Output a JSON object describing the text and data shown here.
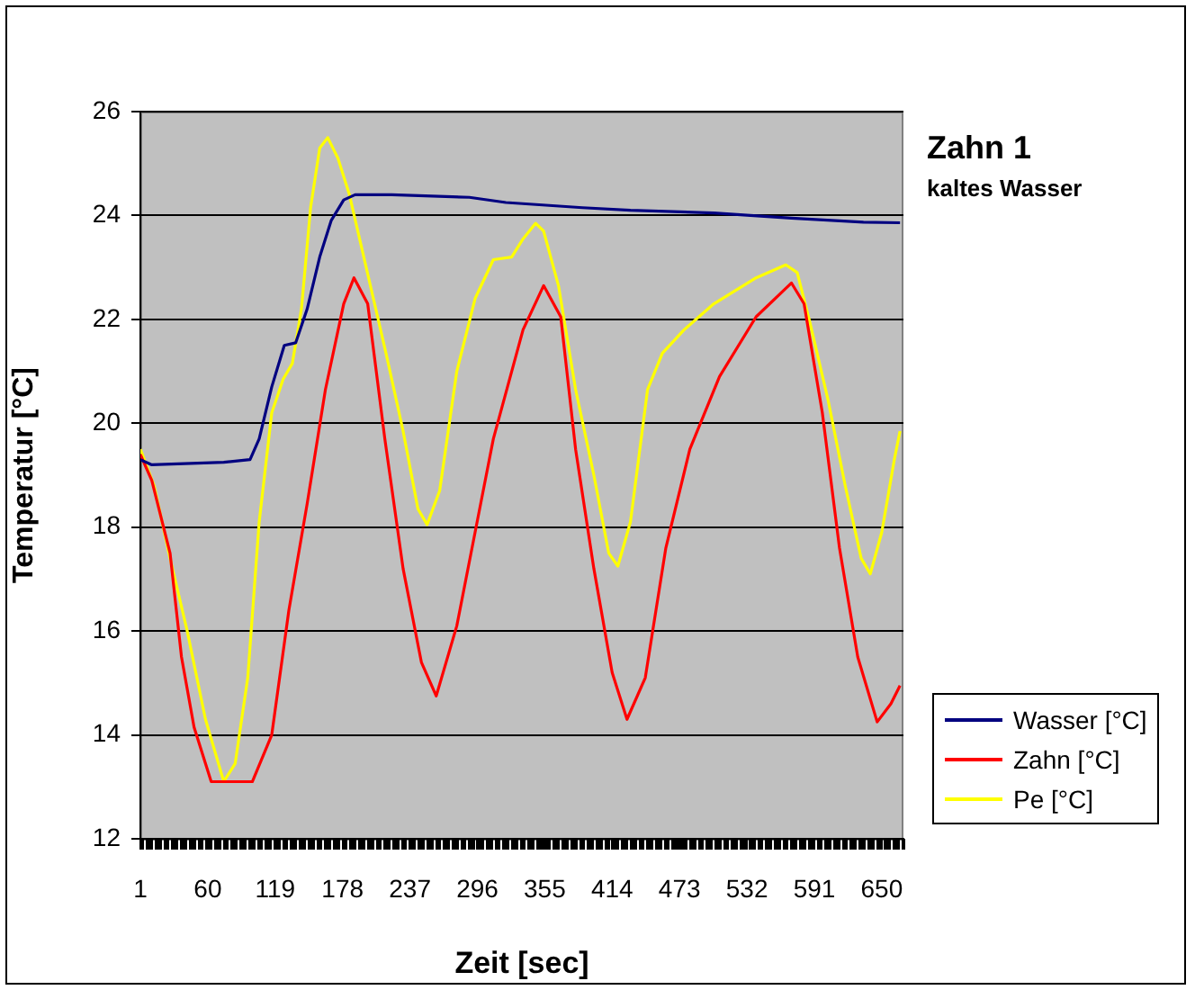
{
  "chart_data": {
    "type": "line",
    "title": "Zahn 1",
    "subtitle": "kaltes Wasser",
    "xlabel": "Zeit [sec]",
    "ylabel": "Temperatur [°C]",
    "xlim": [
      1,
      669
    ],
    "xticks": [
      1,
      60,
      119,
      178,
      237,
      296,
      355,
      414,
      473,
      532,
      591,
      650
    ],
    "ylim": [
      12,
      26
    ],
    "yticks": [
      12,
      14,
      16,
      18,
      20,
      22,
      24,
      26
    ],
    "grid": "y",
    "legend": "bottom right",
    "marker": "none",
    "line_style": "solid",
    "series": [
      {
        "name": "Wasser [°C]",
        "color": "#000080",
        "x": [
          1,
          11,
          74,
          97,
          105,
          116,
          127,
          137,
          147,
          158,
          168,
          179,
          189,
          221,
          289,
          321,
          388,
          430,
          503,
          535,
          571,
          634,
          666
        ],
        "values": [
          19.3,
          19.2,
          19.25,
          19.3,
          19.7,
          20.7,
          21.5,
          21.55,
          22.2,
          23.2,
          23.9,
          24.3,
          24.4,
          24.4,
          24.35,
          24.25,
          24.15,
          24.1,
          24.05,
          24.0,
          23.95,
          23.87,
          23.86
        ]
      },
      {
        "name": "Zahn [°C]",
        "color": "#ff0000",
        "x": [
          1,
          11,
          27,
          37,
          48,
          63,
          99,
          116,
          131,
          147,
          163,
          179,
          188,
          200,
          215,
          231,
          247,
          260,
          278,
          294,
          310,
          336,
          354,
          369,
          382,
          398,
          414,
          427,
          443,
          461,
          482,
          508,
          540,
          571,
          582,
          598,
          613,
          629,
          646,
          658,
          666
        ],
        "values": [
          19.4,
          18.9,
          17.5,
          15.5,
          14.15,
          13.1,
          13.1,
          14.0,
          16.4,
          18.45,
          20.65,
          22.3,
          22.8,
          22.3,
          19.7,
          17.2,
          15.4,
          14.75,
          16.1,
          17.9,
          19.7,
          21.8,
          22.65,
          22.05,
          19.5,
          17.2,
          15.2,
          14.3,
          15.1,
          17.6,
          19.5,
          20.9,
          22.05,
          22.7,
          22.3,
          20.2,
          17.6,
          15.5,
          14.25,
          14.6,
          14.95
        ]
      },
      {
        "name": "Pe [°C]",
        "color": "#ffff00",
        "x": [
          1,
          13,
          27,
          42,
          58,
          74,
          84,
          95,
          105,
          116,
          126,
          134,
          142,
          150,
          158,
          165,
          174,
          184,
          195,
          216,
          231,
          244,
          252,
          263,
          278,
          294,
          310,
          326,
          336,
          347,
          354,
          367,
          382,
          398,
          411,
          419,
          430,
          445,
          458,
          477,
          503,
          540,
          566,
          576,
          587,
          603,
          618,
          632,
          640,
          650,
          661,
          666
        ],
        "values": [
          19.5,
          18.8,
          17.4,
          16.0,
          14.3,
          13.1,
          13.45,
          15.1,
          18.1,
          20.2,
          20.85,
          21.15,
          22.2,
          24.15,
          25.3,
          25.5,
          25.1,
          24.4,
          23.35,
          21.35,
          19.85,
          18.35,
          18.05,
          18.7,
          21.0,
          22.4,
          23.15,
          23.2,
          23.55,
          23.85,
          23.7,
          22.65,
          20.65,
          19.0,
          17.5,
          17.25,
          18.1,
          20.65,
          21.35,
          21.8,
          22.3,
          22.8,
          23.05,
          22.9,
          21.95,
          20.45,
          18.8,
          17.4,
          17.1,
          17.9,
          19.3,
          19.85
        ]
      }
    ]
  }
}
